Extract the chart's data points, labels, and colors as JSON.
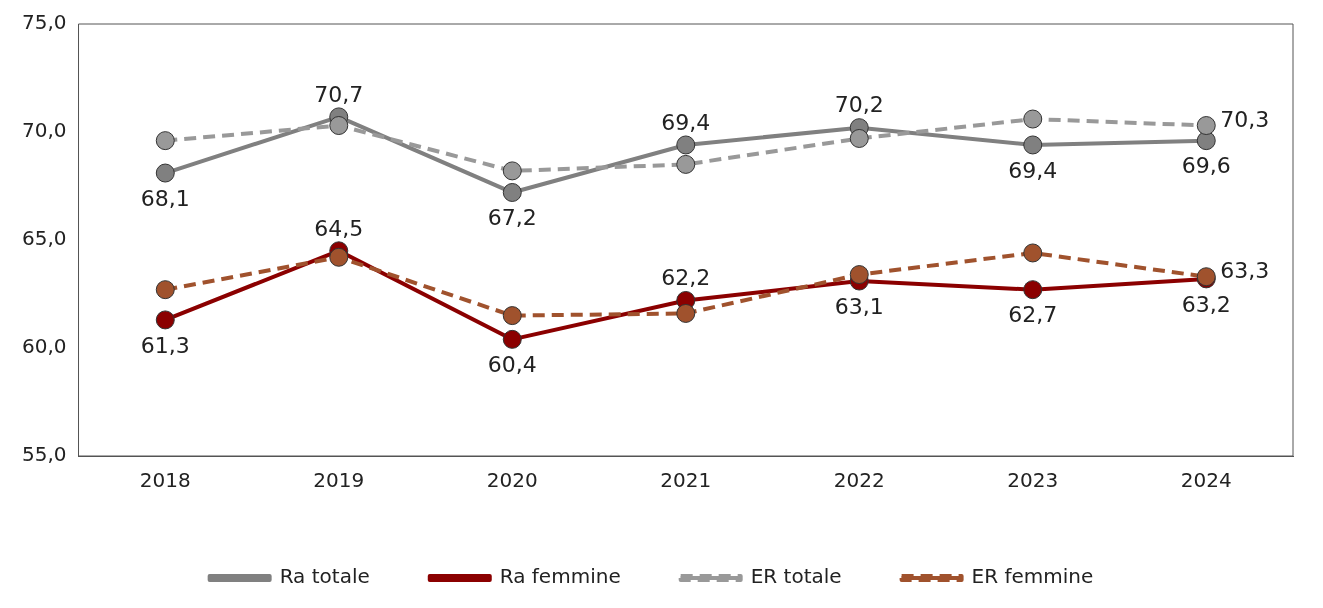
{
  "chart_data": {
    "type": "line",
    "categories": [
      "2018",
      "2019",
      "2020",
      "2021",
      "2022",
      "2023",
      "2024"
    ],
    "ylim": [
      55,
      75
    ],
    "yticks": [
      {
        "value": 55,
        "label": "55,0"
      },
      {
        "value": 60,
        "label": "60,0"
      },
      {
        "value": 65,
        "label": "65,0"
      },
      {
        "value": 70,
        "label": "70,0"
      },
      {
        "value": 75,
        "label": "75,0"
      }
    ],
    "grid": false,
    "legend": "bottom",
    "marker": "circle",
    "series": [
      {
        "name": "Ra totale",
        "color": "#808080",
        "line_style": "solid",
        "values": [
          68.1,
          70.7,
          67.2,
          69.4,
          70.2,
          69.4,
          69.6
        ],
        "value_labels": [
          "68,1",
          "70,7",
          "67,2",
          "69,4",
          "70,2",
          "69,4",
          "69,6"
        ]
      },
      {
        "name": "Ra femmine",
        "color": "#8b0000",
        "line_style": "solid",
        "values": [
          61.3,
          64.5,
          60.4,
          62.2,
          63.1,
          62.7,
          63.2
        ],
        "value_labels": [
          "61,3",
          "64,5",
          "60,4",
          "62,2",
          "63,1",
          "62,7",
          "63,2"
        ]
      },
      {
        "name": "ER totale",
        "color": "#999999",
        "line_style": "dashed",
        "values": [
          69.6,
          70.3,
          68.2,
          68.5,
          69.7,
          70.6,
          70.3
        ],
        "value_labels": [
          null,
          null,
          null,
          null,
          null,
          null,
          "70,3"
        ]
      },
      {
        "name": "ER femmine",
        "color": "#a0522d",
        "line_style": "dashed",
        "values": [
          62.7,
          64.2,
          61.5,
          61.6,
          63.4,
          64.4,
          63.3
        ],
        "value_labels": [
          null,
          null,
          null,
          null,
          null,
          null,
          "63,3"
        ]
      }
    ]
  }
}
